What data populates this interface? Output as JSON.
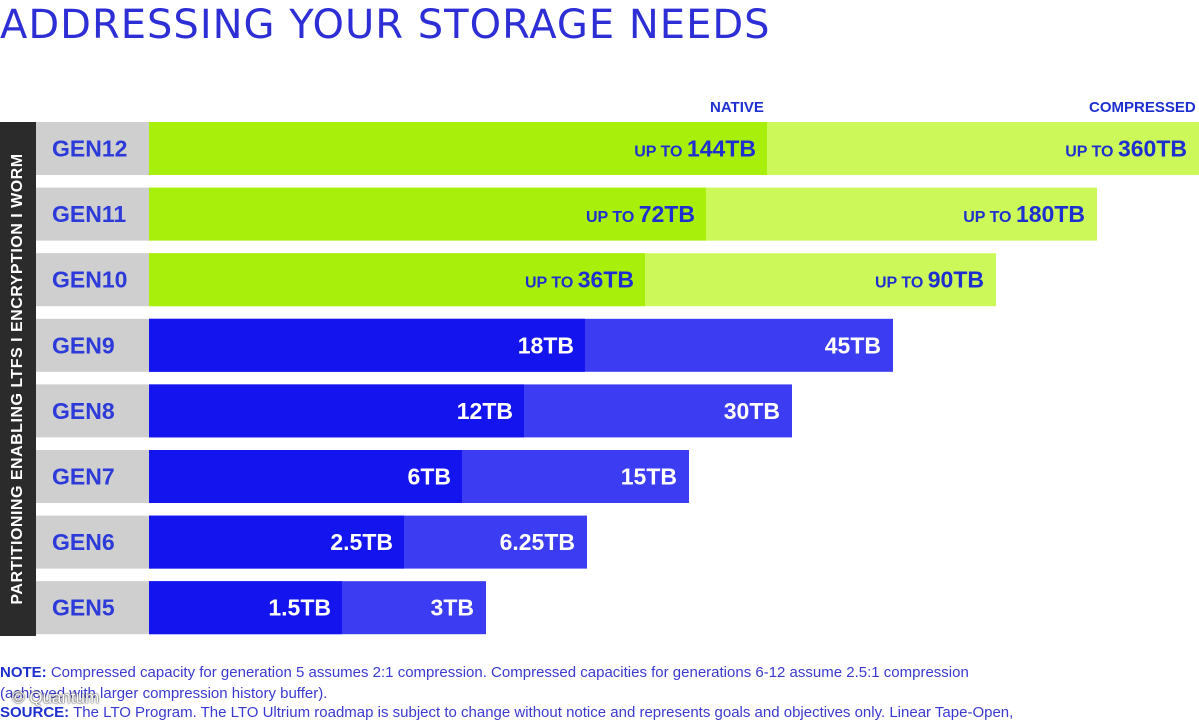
{
  "title": "ADDRESSING YOUR STORAGE NEEDS",
  "headers": {
    "native": "NATIVE",
    "compressed": "COMPRESSED"
  },
  "side_label": "PARTITIONING ENABLING LTFS  I  ENCRYPTION  I  WORM",
  "note": {
    "label": "NOTE:",
    "line1": "Compressed capacity for generation 5 assumes 2:1 compression. Compressed capacities for generations 6-12 assume 2.5:1 compression",
    "line2": "(achieved with larger compression history buffer)."
  },
  "source": {
    "label": "SOURCE:",
    "text": "The LTO Program. The LTO Ultrium roadmap is subject to change without notice and represents goals and objectives only. Linear Tape-Open,"
  },
  "watermark": "© Quantum",
  "colors": {
    "future_native": "#a8f00b",
    "future_compressed": "#ccf85a",
    "current_native": "#1414ee",
    "current_compressed": "#3c3cf2",
    "gen_cell": "#cfcfcf",
    "label_blue": "#1e2fd0"
  },
  "chart_data": {
    "type": "bar",
    "orientation": "horizontal",
    "stacked_overlay": true,
    "categories": [
      "GEN12",
      "GEN11",
      "GEN10",
      "GEN9",
      "GEN8",
      "GEN7",
      "GEN6",
      "GEN5"
    ],
    "series": [
      {
        "name": "NATIVE",
        "values": [
          144,
          72,
          36,
          18,
          12,
          6,
          2.5,
          1.5
        ],
        "labels": [
          "144TB",
          "72TB",
          "36TB",
          "18TB",
          "12TB",
          "6TB",
          "2.5TB",
          "1.5TB"
        ]
      },
      {
        "name": "COMPRESSED",
        "values": [
          360,
          180,
          90,
          45,
          30,
          15,
          6.25,
          3
        ],
        "labels": [
          "360TB",
          "180TB",
          "90TB",
          "45TB",
          "30TB",
          "15TB",
          "6.25TB",
          "3TB"
        ]
      }
    ],
    "prefix": [
      "UP TO",
      "UP TO",
      "UP TO",
      "",
      "",
      "",
      "",
      ""
    ],
    "future": [
      true,
      true,
      true,
      false,
      false,
      false,
      false,
      false
    ],
    "scale": "log-like (bars grow by generation, not linear in TB)"
  }
}
